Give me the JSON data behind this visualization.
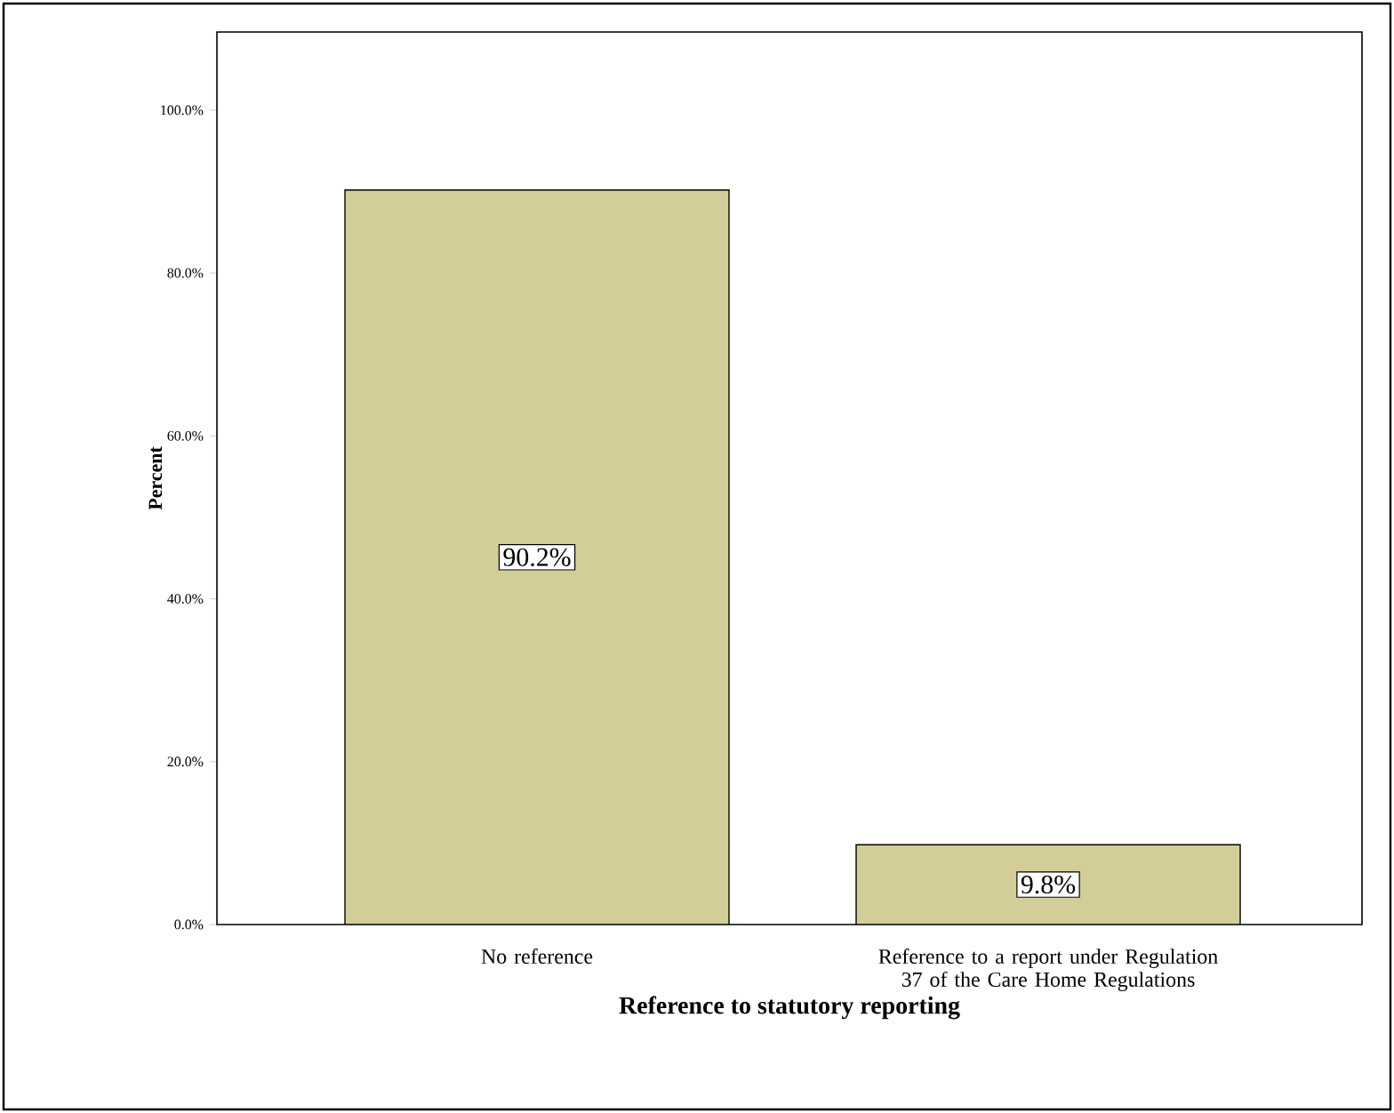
{
  "chart_data": {
    "type": "bar",
    "xlabel": "Reference to statutory reporting",
    "ylabel": "Percent",
    "categories": [
      "No reference",
      "Reference to a report under Regulation 37 of the Care Home Regulations"
    ],
    "values": [
      90.2,
      9.8
    ],
    "value_labels": [
      "90.2%",
      "9.8%"
    ],
    "color": "#d3ce97",
    "ylim": [
      0,
      109.6
    ],
    "yticks": [
      {
        "value": 0,
        "label": "0.0%"
      },
      {
        "value": 20,
        "label": "20.0%"
      },
      {
        "value": 40,
        "label": "40.0%"
      },
      {
        "value": 60,
        "label": "60.0%"
      },
      {
        "value": 80,
        "label": "80.0%"
      },
      {
        "value": 100,
        "label": "100.0%"
      }
    ],
    "grid": false
  }
}
